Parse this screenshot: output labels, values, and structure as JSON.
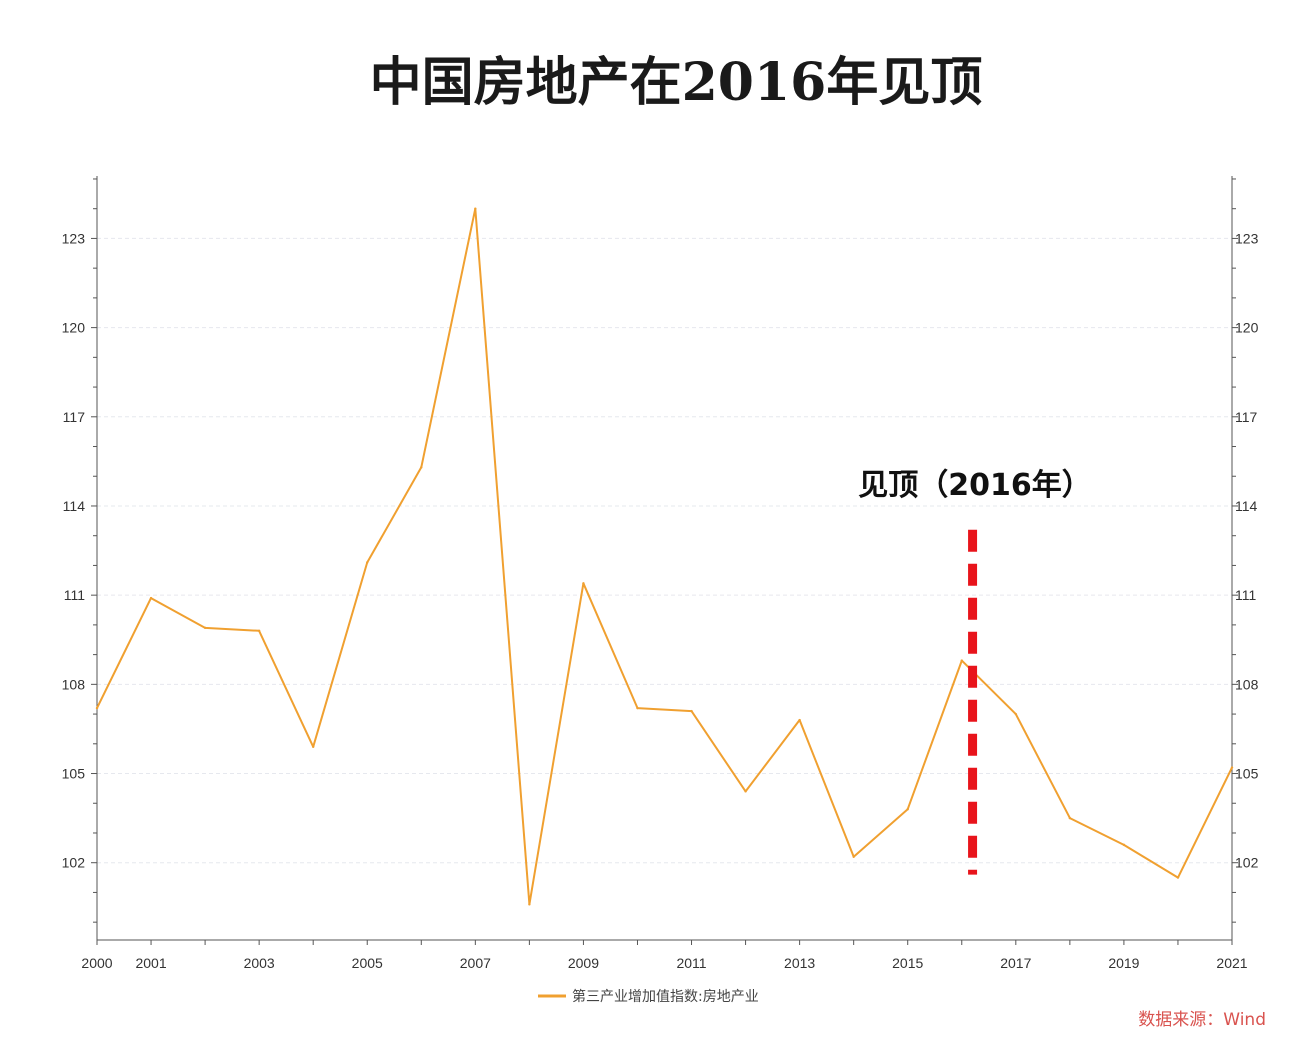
{
  "chart_data": {
    "type": "line",
    "title": "中国房地产在2016年见顶",
    "x": [
      2000,
      2001,
      2002,
      2003,
      2004,
      2005,
      2006,
      2007,
      2008,
      2009,
      2010,
      2011,
      2012,
      2013,
      2014,
      2015,
      2016,
      2017,
      2018,
      2019,
      2020,
      2021
    ],
    "x_tick_labels": [
      "2000",
      "2001",
      "2003",
      "2005",
      "2007",
      "2009",
      "2011",
      "2013",
      "2015",
      "2017",
      "2019",
      "2021"
    ],
    "x_tick_values": [
      2000,
      2001,
      2003,
      2005,
      2007,
      2009,
      2011,
      2013,
      2015,
      2017,
      2019,
      2021
    ],
    "y_tick_values": [
      102,
      105,
      108,
      111,
      114,
      117,
      120,
      123
    ],
    "y_tick_labels": [
      "102",
      "105",
      "108",
      "111",
      "114",
      "117",
      "120",
      "123"
    ],
    "xlim": [
      2000,
      2021
    ],
    "ylim": [
      99.4,
      125.1
    ],
    "series": [
      {
        "name": "第三产业增加值指数:房地产业",
        "color": "#f0a030",
        "values": [
          107.2,
          110.9,
          109.9,
          109.8,
          105.9,
          112.1,
          115.3,
          124.0,
          100.6,
          111.4,
          107.2,
          107.1,
          104.4,
          106.8,
          102.2,
          103.8,
          108.8,
          107.0,
          103.5,
          102.6,
          101.5,
          105.2
        ]
      }
    ],
    "right_axis": true,
    "grid": true,
    "legend_position": "bottom-center",
    "annotation": {
      "text": "见顶（2016年）",
      "x": 2016.2,
      "y_top": 113.2,
      "y_bottom": 101.6,
      "color": "#e8141b"
    },
    "source": "数据来源：Wind"
  }
}
